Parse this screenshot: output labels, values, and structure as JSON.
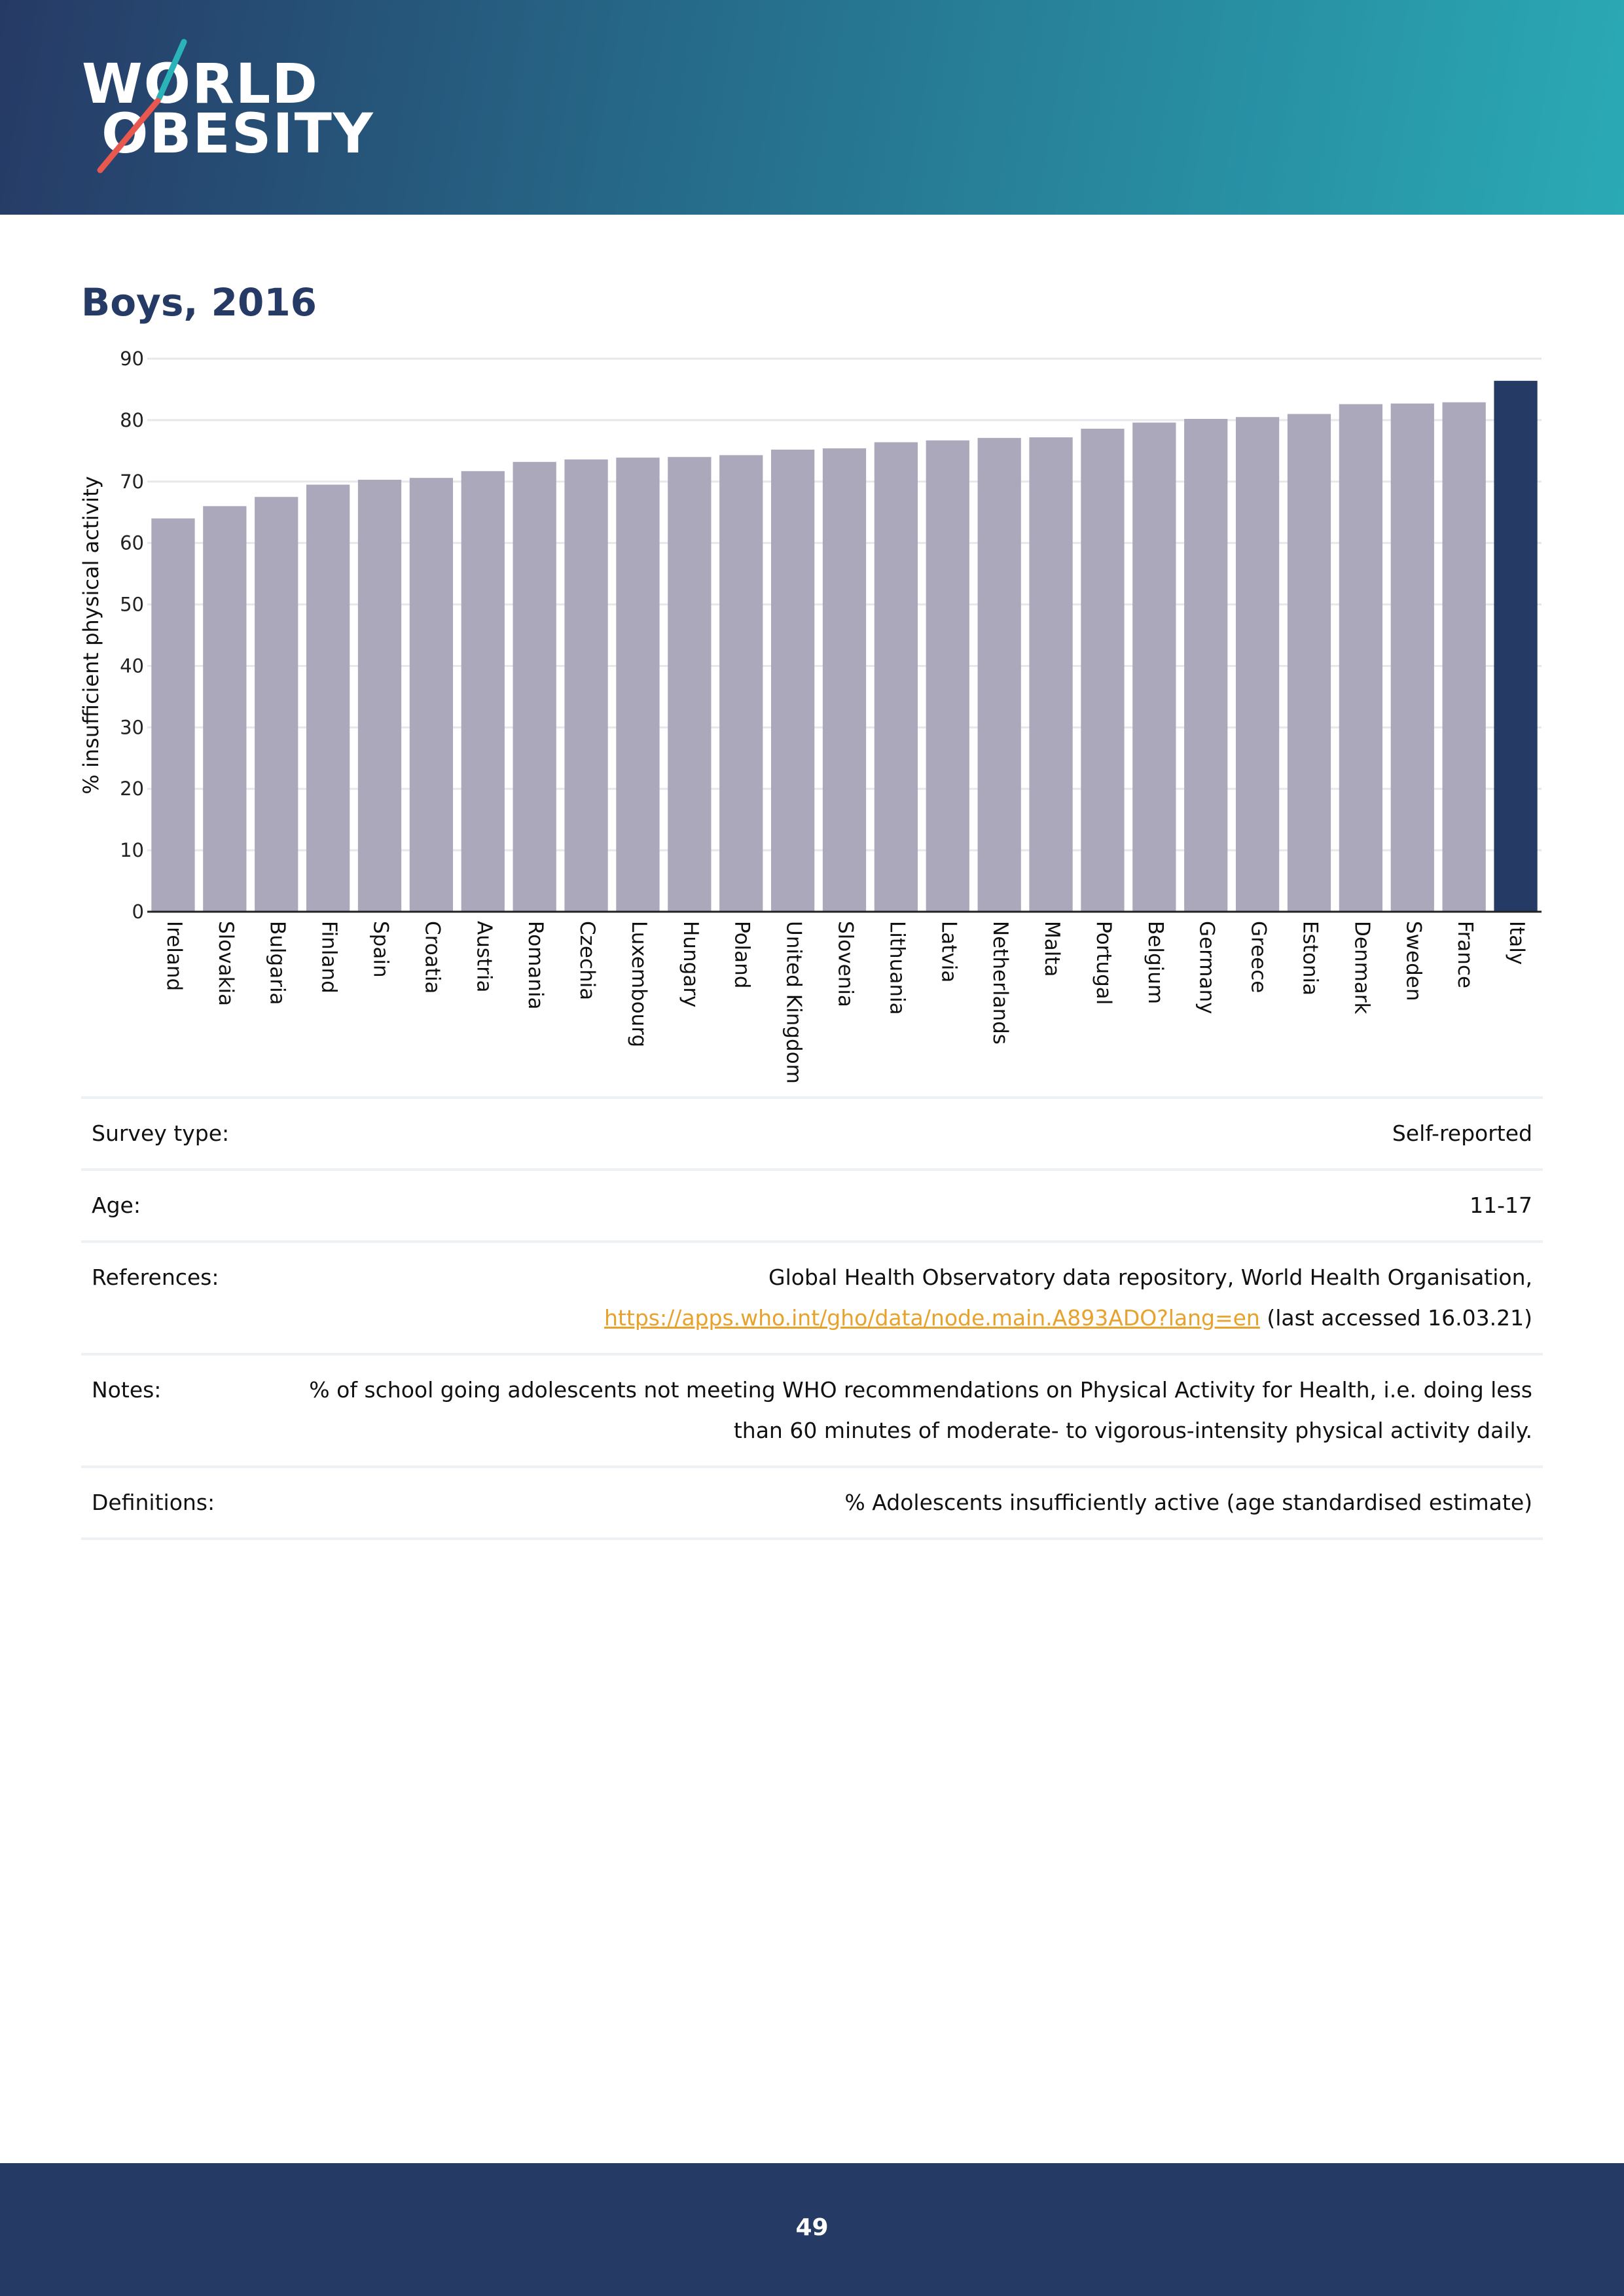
{
  "brand": {
    "line1": "WORLD",
    "line2": "OBESITY",
    "slash_color_top": "#2ab4b9",
    "slash_color_bottom": "#e8584f"
  },
  "title": "Boys, 2016",
  "chart_data": {
    "type": "bar",
    "title": "Boys, 2016",
    "xlabel": "",
    "ylabel": "% insufficient physical activity",
    "ylim": [
      0,
      90
    ],
    "yticks": [
      0,
      10,
      20,
      30,
      40,
      50,
      60,
      70,
      80,
      90
    ],
    "grid": true,
    "categories": [
      "Ireland",
      "Slovakia",
      "Bulgaria",
      "Finland",
      "Spain",
      "Croatia",
      "Austria",
      "Romania",
      "Czechia",
      "Luxembourg",
      "Hungary",
      "Poland",
      "United Kingdom",
      "Slovenia",
      "Lithuania",
      "Latvia",
      "Netherlands",
      "Malta",
      "Portugal",
      "Belgium",
      "Germany",
      "Greece",
      "Estonia",
      "Denmark",
      "Sweden",
      "France",
      "Italy"
    ],
    "values": [
      64.0,
      66.0,
      67.5,
      69.5,
      70.3,
      70.6,
      71.7,
      73.2,
      73.6,
      73.9,
      74.0,
      74.3,
      75.2,
      75.4,
      76.4,
      76.7,
      77.1,
      77.2,
      78.6,
      79.6,
      80.2,
      80.5,
      81.0,
      82.6,
      82.7,
      82.9,
      86.4
    ],
    "highlight": "Italy",
    "bar_color": "#aca8bc",
    "highlight_color": "#263a66"
  },
  "info": {
    "survey_type_label": "Survey type:",
    "survey_type_value": "Self-reported",
    "age_label": "Age:",
    "age_value": "11-17",
    "references_label": "References:",
    "references_text": "Global Health Observatory data repository, World Health Organisation,",
    "references_link": "https://apps.who.int/gho/data/node.main.A893ADO?lang=en",
    "references_suffix": "(last accessed 16.03.21)",
    "notes_label": "Notes:",
    "notes_value": "% of school going adolescents not meeting WHO recommendations on Physical Activity for Health, i.e. doing less than 60 minutes of moderate- to vigorous-intensity physical activity daily.",
    "definitions_label": "Definitions:",
    "definitions_value": "% Adolescents insufficiently active (age standardised estimate)"
  },
  "footer": {
    "page_number": "49"
  }
}
